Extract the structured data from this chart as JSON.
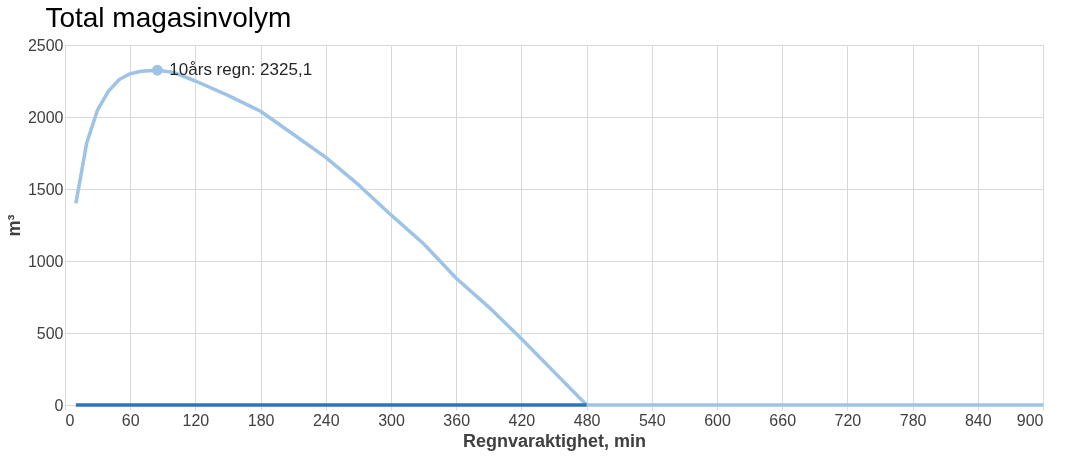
{
  "chart_data": {
    "type": "line",
    "title": "Total magasinvolym",
    "xlabel": "Regnvaraktighet, min",
    "ylabel": "m³",
    "xlim": [
      0,
      900
    ],
    "xticks": [
      0,
      60,
      120,
      180,
      240,
      300,
      360,
      420,
      480,
      540,
      600,
      660,
      720,
      780,
      840,
      900
    ],
    "ylim": [
      0,
      2500
    ],
    "yticks": [
      0,
      500,
      1000,
      1500,
      2000,
      2500
    ],
    "grid": true,
    "marker": "none",
    "series": [
      {
        "color": "#9dc3e6",
        "x": [
          10,
          20,
          30,
          40,
          50,
          60,
          70,
          85,
          100,
          120,
          150,
          180,
          210,
          240,
          270,
          300,
          330,
          360,
          390,
          420,
          450,
          480,
          540,
          600,
          660,
          720,
          780,
          840,
          900
        ],
        "values": [
          1400,
          1820,
          2050,
          2180,
          2260,
          2300,
          2318,
          2325.1,
          2310,
          2250,
          2150,
          2040,
          1880,
          1720,
          1530,
          1320,
          1120,
          880,
          680,
          460,
          230,
          0,
          0,
          0,
          0,
          0,
          0,
          0,
          0
        ]
      },
      {
        "color": "#2e75b6",
        "x": [
          10,
          480
        ],
        "values": [
          0,
          0
        ]
      }
    ],
    "annotations": [
      {
        "text": "10års regn: 2325,1",
        "x": 85,
        "y": 2325.1
      }
    ]
  }
}
